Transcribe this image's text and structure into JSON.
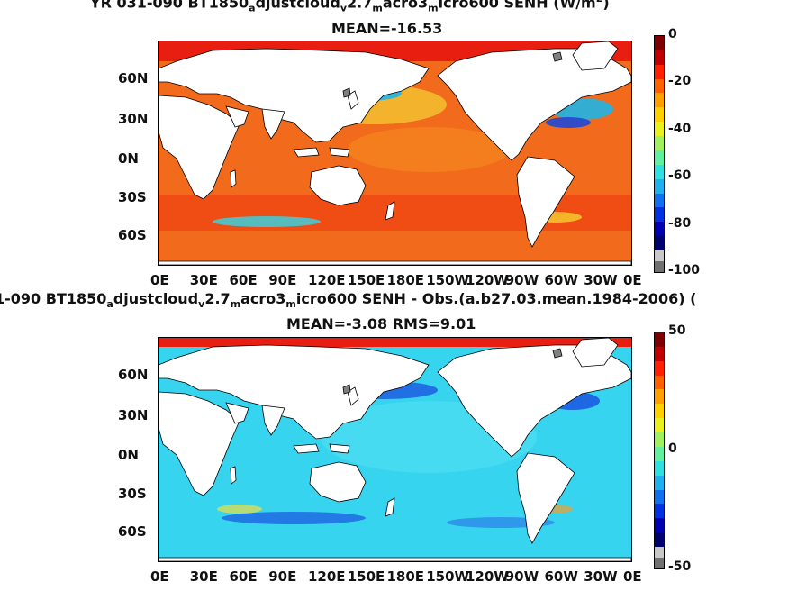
{
  "panel1": {
    "title_line1_parts": [
      "YR 031-090 BT1850",
      "a",
      "djustcloud",
      "v",
      "2.7",
      "m",
      "acro3",
      "m",
      "icro600  SENH (W/m",
      "2",
      ")"
    ],
    "title_line2": "MEAN=-16.53",
    "colorbar_ticks": [
      "0",
      "-20",
      "-40",
      "-60",
      "-80",
      "-100"
    ]
  },
  "panel2": {
    "title_line1_parts": [
      "1-090 BT1850",
      "a",
      "djustcloud",
      "v",
      "2.7",
      "m",
      "acro3",
      "m",
      "icro600 SENH - Obs.(a.b27.03.mean.1984-2006) ("
    ],
    "title_line2": "MEAN=-3.08 RMS=9.01",
    "colorbar_ticks": [
      "50",
      "0",
      "-50"
    ]
  },
  "lat_ticks": [
    "60N",
    "30N",
    "0N",
    "30S",
    "60S"
  ],
  "lon_ticks": [
    "0E",
    "30E",
    "60E",
    "90E",
    "120E",
    "150E",
    "180E",
    "150W",
    "120W",
    "90W",
    "60W",
    "30W",
    "0E"
  ],
  "colors": {
    "ocean1": "#f26a1b",
    "ocean1_cold": "#1fb5e8",
    "ocean2": "#37d4f0",
    "ocean2_blue": "#1a56e0",
    "land": "#ffffff",
    "missing": "#808080"
  },
  "chart_data": [
    {
      "type": "heatmap",
      "title": "YR 031-090 BT1850adjustcloudv2.7macro3micro600 SENH (W/m2)",
      "subtitle": "MEAN=-16.53",
      "x_ticks": [
        "0E",
        "30E",
        "60E",
        "90E",
        "120E",
        "150E",
        "180E",
        "150W",
        "120W",
        "90W",
        "60W",
        "30W",
        "0E"
      ],
      "y_ticks": [
        "60N",
        "30N",
        "0N",
        "30S",
        "60S"
      ],
      "colorbar_range": [
        -100,
        0
      ],
      "colorbar_ticks": [
        0,
        -20,
        -40,
        -60,
        -80,
        -100
      ],
      "mean": -16.53
    },
    {
      "type": "heatmap",
      "title": "1-090 BT1850adjustcloudv2.7macro3micro600 SENH - Obs.(a.b27.03.mean.1984-2006) (",
      "subtitle": "MEAN=-3.08 RMS=9.01",
      "x_ticks": [
        "0E",
        "30E",
        "60E",
        "90E",
        "120E",
        "150E",
        "180E",
        "150W",
        "120W",
        "90W",
        "60W",
        "30W",
        "0E"
      ],
      "y_ticks": [
        "60N",
        "30N",
        "0N",
        "30S",
        "60S"
      ],
      "colorbar_range": [
        -50,
        50
      ],
      "colorbar_ticks": [
        50,
        0,
        -50
      ],
      "mean": -3.08,
      "rms": 9.01
    }
  ]
}
